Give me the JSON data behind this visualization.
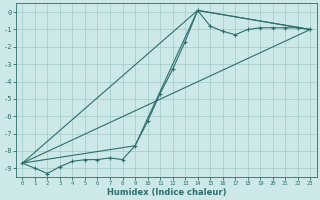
{
  "xlabel": "Humidex (Indice chaleur)",
  "bg_color": "#cce8e8",
  "grid_color": "#aacece",
  "line_color": "#2e6e6e",
  "xlim": [
    -0.5,
    23.5
  ],
  "ylim": [
    -9.5,
    0.5
  ],
  "yticks": [
    0,
    -1,
    -2,
    -3,
    -4,
    -5,
    -6,
    -7,
    -8,
    -9
  ],
  "xticks": [
    0,
    1,
    2,
    3,
    4,
    5,
    6,
    7,
    8,
    9,
    10,
    11,
    12,
    13,
    14,
    15,
    16,
    17,
    18,
    19,
    20,
    21,
    22,
    23
  ],
  "series": [
    {
      "x": [
        0,
        1,
        2,
        3,
        4,
        5,
        6,
        7,
        8,
        9,
        10,
        11,
        12,
        13,
        14,
        15,
        16,
        17,
        18,
        19,
        20,
        21,
        22,
        23
      ],
      "y": [
        -8.7,
        -9.0,
        -9.3,
        -8.9,
        -8.6,
        -8.5,
        -8.5,
        -8.4,
        -8.5,
        -7.7,
        -6.3,
        -4.7,
        -3.3,
        -1.7,
        0.1,
        -0.8,
        -1.1,
        -1.3,
        -1.0,
        -0.9,
        -0.9,
        -0.9,
        -0.9,
        -1.0
      ]
    },
    {
      "x": [
        0,
        23
      ],
      "y": [
        -8.7,
        -1.0
      ]
    },
    {
      "x": [
        0,
        9,
        14,
        23
      ],
      "y": [
        -8.7,
        -7.7,
        0.1,
        -1.0
      ]
    },
    {
      "x": [
        0,
        14,
        23
      ],
      "y": [
        -8.7,
        0.1,
        -1.0
      ]
    }
  ]
}
